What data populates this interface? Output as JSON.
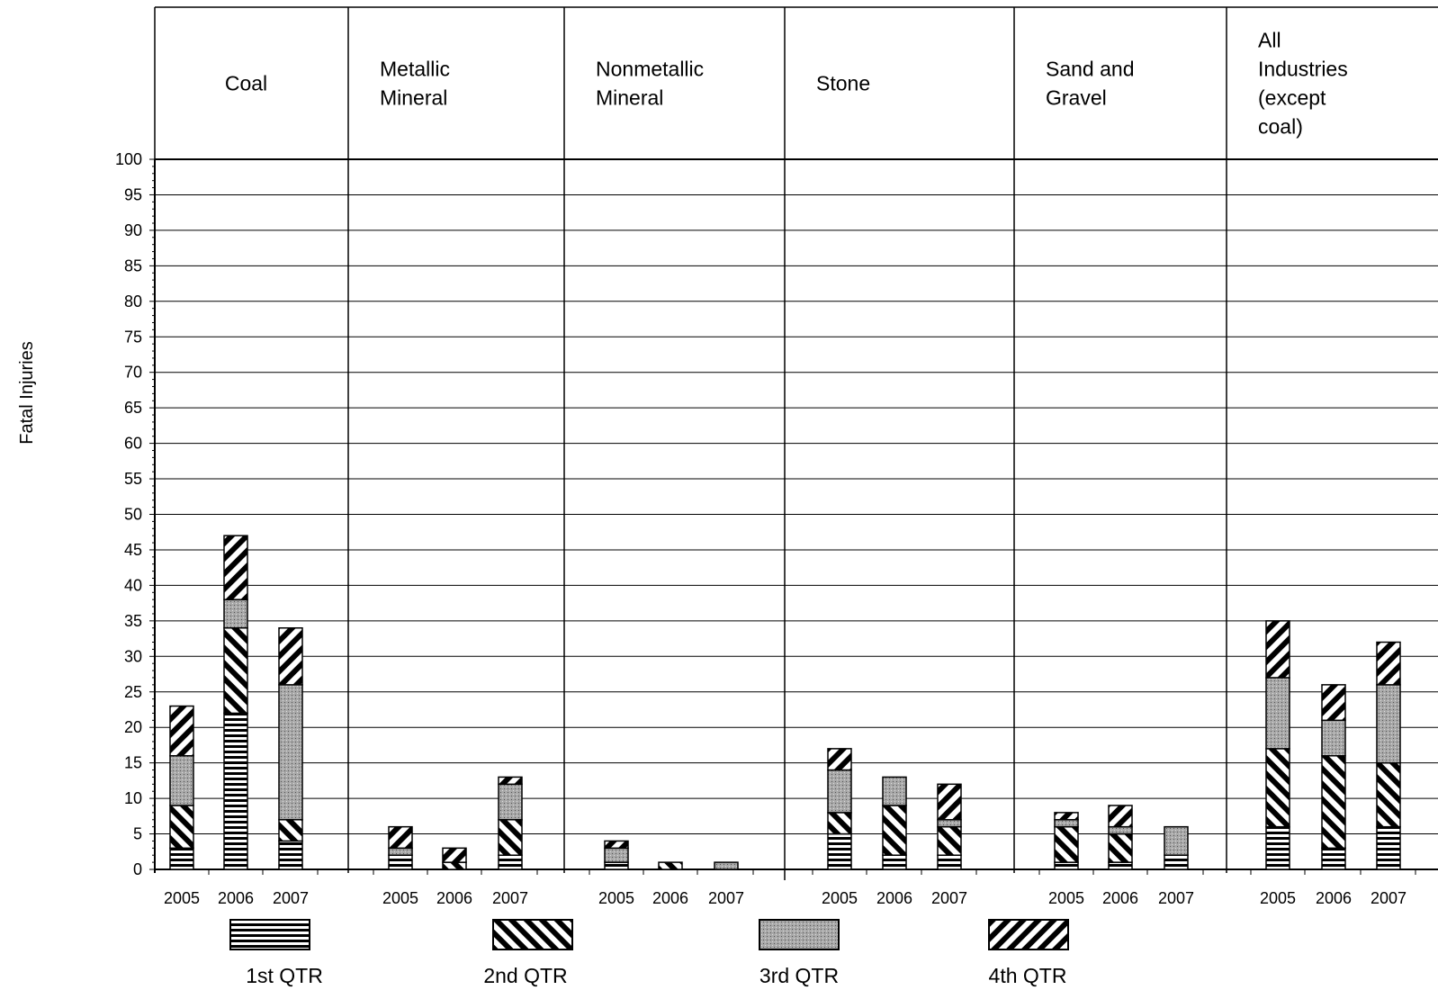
{
  "chart_data": {
    "type": "bar",
    "stacked": true,
    "ylabel": "Fatal Injuries",
    "ylim": [
      0,
      100
    ],
    "ytick_step": 5,
    "yticks": [
      "0",
      "5",
      "10",
      "15",
      "20",
      "25",
      "30",
      "35",
      "40",
      "45",
      "50",
      "55",
      "60",
      "65",
      "70",
      "75",
      "80",
      "85",
      "90",
      "95",
      "100"
    ],
    "grid": true,
    "legend_position": "bottom",
    "years": [
      "2005",
      "2006",
      "2007"
    ],
    "groups": [
      {
        "name": [
          "Coal"
        ]
      },
      {
        "name": [
          "Metallic",
          "Mineral"
        ]
      },
      {
        "name": [
          "Nonmetallic",
          "Mineral"
        ]
      },
      {
        "name": [
          "Stone"
        ]
      },
      {
        "name": [
          "Sand and",
          "Gravel"
        ]
      },
      {
        "name": [
          "All",
          "Industries",
          "(except",
          "coal)"
        ]
      }
    ],
    "series": [
      {
        "name": "1st QTR",
        "pattern": "horizontal-lines",
        "values": [
          [
            3,
            22,
            4
          ],
          [
            2,
            0,
            2
          ],
          [
            1,
            0,
            0
          ],
          [
            5,
            2,
            2
          ],
          [
            1,
            1,
            2
          ],
          [
            6,
            3,
            6
          ]
        ]
      },
      {
        "name": "2nd QTR",
        "pattern": "backslash-diagonal",
        "values": [
          [
            6,
            12,
            3
          ],
          [
            0,
            1,
            5
          ],
          [
            0,
            1,
            0
          ],
          [
            3,
            7,
            4
          ],
          [
            5,
            4,
            0
          ],
          [
            11,
            13,
            9
          ]
        ]
      },
      {
        "name": "3rd QTR",
        "pattern": "dotted",
        "values": [
          [
            7,
            4,
            19
          ],
          [
            1,
            0,
            5
          ],
          [
            2,
            0,
            1
          ],
          [
            6,
            4,
            1
          ],
          [
            1,
            1,
            4
          ],
          [
            10,
            5,
            11
          ]
        ]
      },
      {
        "name": "4th QTR",
        "pattern": "forward-diagonal",
        "values": [
          [
            7,
            9,
            8
          ],
          [
            3,
            2,
            1
          ],
          [
            1,
            0,
            0
          ],
          [
            3,
            0,
            5
          ],
          [
            1,
            3,
            0
          ],
          [
            8,
            5,
            6
          ]
        ]
      }
    ]
  }
}
